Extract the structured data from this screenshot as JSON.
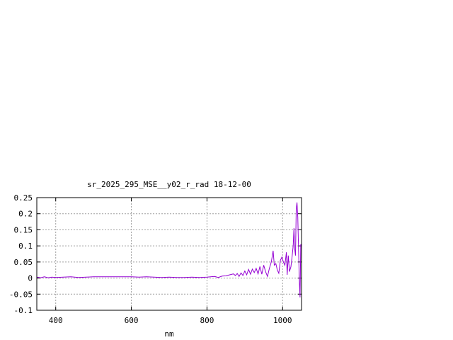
{
  "chart_data": {
    "type": "line",
    "title": "sr_2025_295_MSE__y02_r_rad 18-12-00",
    "xlabel": "nm",
    "ylabel": "",
    "xlim": [
      350,
      1050
    ],
    "ylim": [
      -0.1,
      0.25
    ],
    "grid": true,
    "xticks": [
      400,
      600,
      800,
      1000
    ],
    "xtick_labels": [
      "400",
      "600",
      "800",
      "1000"
    ],
    "yticks": [
      -0.1,
      -0.05,
      0,
      0.05,
      0.1,
      0.15,
      0.2,
      0.25
    ],
    "ytick_labels": [
      "-0.1",
      "-0.05",
      "0",
      "0.05",
      "0.1",
      "0.15",
      "0.2",
      "0.25"
    ],
    "series": [
      {
        "color": "#9400d3",
        "x": [
          350,
          360,
          370,
          380,
          390,
          400,
          420,
          440,
          460,
          480,
          500,
          520,
          540,
          560,
          580,
          600,
          620,
          640,
          660,
          680,
          700,
          720,
          740,
          760,
          780,
          800,
          820,
          830,
          840,
          850,
          860,
          870,
          875,
          880,
          885,
          890,
          895,
          900,
          905,
          910,
          915,
          920,
          925,
          930,
          935,
          940,
          945,
          950,
          955,
          960,
          965,
          970,
          975,
          978,
          982,
          986,
          990,
          994,
          998,
          1002,
          1006,
          1010,
          1012,
          1015,
          1018,
          1022,
          1025,
          1028,
          1030,
          1032,
          1034,
          1036,
          1038,
          1040,
          1042,
          1044,
          1046,
          1048,
          1050
        ],
        "y": [
          0.003,
          0.001,
          0.004,
          0.001,
          0.003,
          0.002,
          0.003,
          0.004,
          0.002,
          0.003,
          0.004,
          0.004,
          0.004,
          0.004,
          0.004,
          0.004,
          0.003,
          0.004,
          0.003,
          0.002,
          0.003,
          0.002,
          0.002,
          0.003,
          0.002,
          0.003,
          0.005,
          0.002,
          0.006,
          0.007,
          0.01,
          0.013,
          0.008,
          0.014,
          0.005,
          0.016,
          0.008,
          0.022,
          0.01,
          0.027,
          0.012,
          0.028,
          0.017,
          0.03,
          0.013,
          0.036,
          0.012,
          0.04,
          0.02,
          0.005,
          0.03,
          0.05,
          0.085,
          0.04,
          0.045,
          0.025,
          0.015,
          0.055,
          0.065,
          0.05,
          0.04,
          0.08,
          0.01,
          0.07,
          0.02,
          0.035,
          0.065,
          0.1,
          0.155,
          0.09,
          0.07,
          0.215,
          0.235,
          0.19,
          0.1,
          0.0,
          -0.06,
          0.105,
          0.1
        ]
      }
    ]
  }
}
